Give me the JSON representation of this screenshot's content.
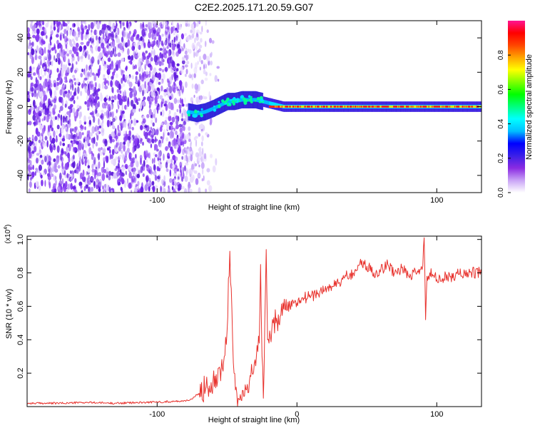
{
  "title": "C2E2.2025.171.20.59.G07",
  "chart_data": [
    {
      "type": "heatmap",
      "xlabel": "Height of straight line (km)",
      "ylabel": "Frequency (Hz)",
      "xlim": [
        -193,
        132
      ],
      "ylim": [
        -50,
        50
      ],
      "xticks": [
        -100,
        0,
        100
      ],
      "xtick_labels": [
        "-100",
        "",
        "100"
      ],
      "yticks": [
        -40,
        -20,
        0,
        20,
        40
      ],
      "ytick_labels": [
        "-40",
        "-20",
        "0",
        "20",
        "40"
      ],
      "grid": false,
      "noise_region_x": [
        -193,
        -62
      ],
      "signal_track": {
        "x": [
          -78,
          -72,
          -66,
          -60,
          -55,
          -50,
          -45,
          -40,
          -35,
          -30,
          -25,
          -20,
          -15,
          -10,
          0,
          20,
          50,
          80,
          100,
          132
        ],
        "frequency": [
          -3,
          -4,
          -3,
          -1,
          1,
          3,
          3,
          4,
          4,
          4,
          3,
          2,
          1,
          0,
          0,
          0,
          0,
          0,
          0,
          0
        ]
      },
      "colorbar": {
        "label": "Normalized spectral amplitude",
        "range": [
          0,
          1
        ],
        "ticks": [
          0.0,
          0.2,
          0.4,
          0.6,
          0.8
        ],
        "tick_labels": [
          "0.0",
          "0.2",
          "0.4",
          "0.6",
          "0.8"
        ],
        "colors": [
          "#ffffff",
          "#c9a3f6",
          "#8a2be2",
          "#3a1fe8",
          "#0000ff",
          "#00bfff",
          "#00ffff",
          "#00ff7f",
          "#00ff00",
          "#7fff00",
          "#ffff00",
          "#ffa500",
          "#ff4500",
          "#ff0000",
          "#ff1493"
        ]
      }
    },
    {
      "type": "line",
      "xlabel": "Height of straight line (km)",
      "ylabel": "SNR (10 * v/v)",
      "multiplier_label": "(x10",
      "multiplier_exp": "4",
      "xlim": [
        -193,
        132
      ],
      "ylim": [
        0,
        1.02
      ],
      "xticks": [
        -100,
        0,
        100
      ],
      "xtick_labels": [
        "-100",
        "0",
        "100"
      ],
      "yticks": [
        0.2,
        0.4,
        0.6,
        0.8,
        1.0
      ],
      "ytick_labels": [
        "0.2",
        "0.4",
        "0.6",
        "0.8",
        "1.0"
      ],
      "color": "#e8322d",
      "grid": false,
      "series": [
        {
          "x": [
            -193,
            -170,
            -150,
            -130,
            -110,
            -90,
            -80,
            -75,
            -70,
            -65,
            -60,
            -55,
            -52,
            -50,
            -48,
            -46,
            -45,
            -44,
            -43,
            -42,
            -41,
            -40,
            -38,
            -36,
            -34,
            -32,
            -30,
            -28,
            -27,
            -26,
            -25,
            -24,
            -23,
            -22,
            -21,
            -20,
            -19,
            -18,
            -17,
            -15,
            -12,
            -10,
            -5,
            0,
            5,
            10,
            15,
            20,
            25,
            30,
            35,
            40,
            45,
            50,
            55,
            60,
            65,
            70,
            75,
            80,
            85,
            88,
            90,
            91,
            92,
            93,
            95,
            100,
            110,
            120,
            132
          ],
          "y": [
            0.02,
            0.02,
            0.025,
            0.02,
            0.025,
            0.03,
            0.035,
            0.045,
            0.08,
            0.12,
            0.16,
            0.22,
            0.3,
            0.45,
            0.93,
            0.4,
            0.2,
            0.1,
            0.08,
            0.05,
            0.04,
            0.04,
            0.06,
            0.1,
            0.15,
            0.2,
            0.28,
            0.33,
            0.38,
            0.85,
            0.3,
            0.05,
            0.5,
            0.94,
            0.4,
            0.38,
            0.42,
            0.46,
            0.5,
            0.5,
            0.54,
            0.62,
            0.6,
            0.62,
            0.65,
            0.66,
            0.68,
            0.7,
            0.72,
            0.74,
            0.78,
            0.8,
            0.86,
            0.84,
            0.8,
            0.82,
            0.85,
            0.8,
            0.83,
            0.78,
            0.8,
            0.82,
            0.84,
            1.01,
            0.52,
            0.78,
            0.8,
            0.76,
            0.78,
            0.8,
            0.8
          ]
        }
      ]
    }
  ]
}
